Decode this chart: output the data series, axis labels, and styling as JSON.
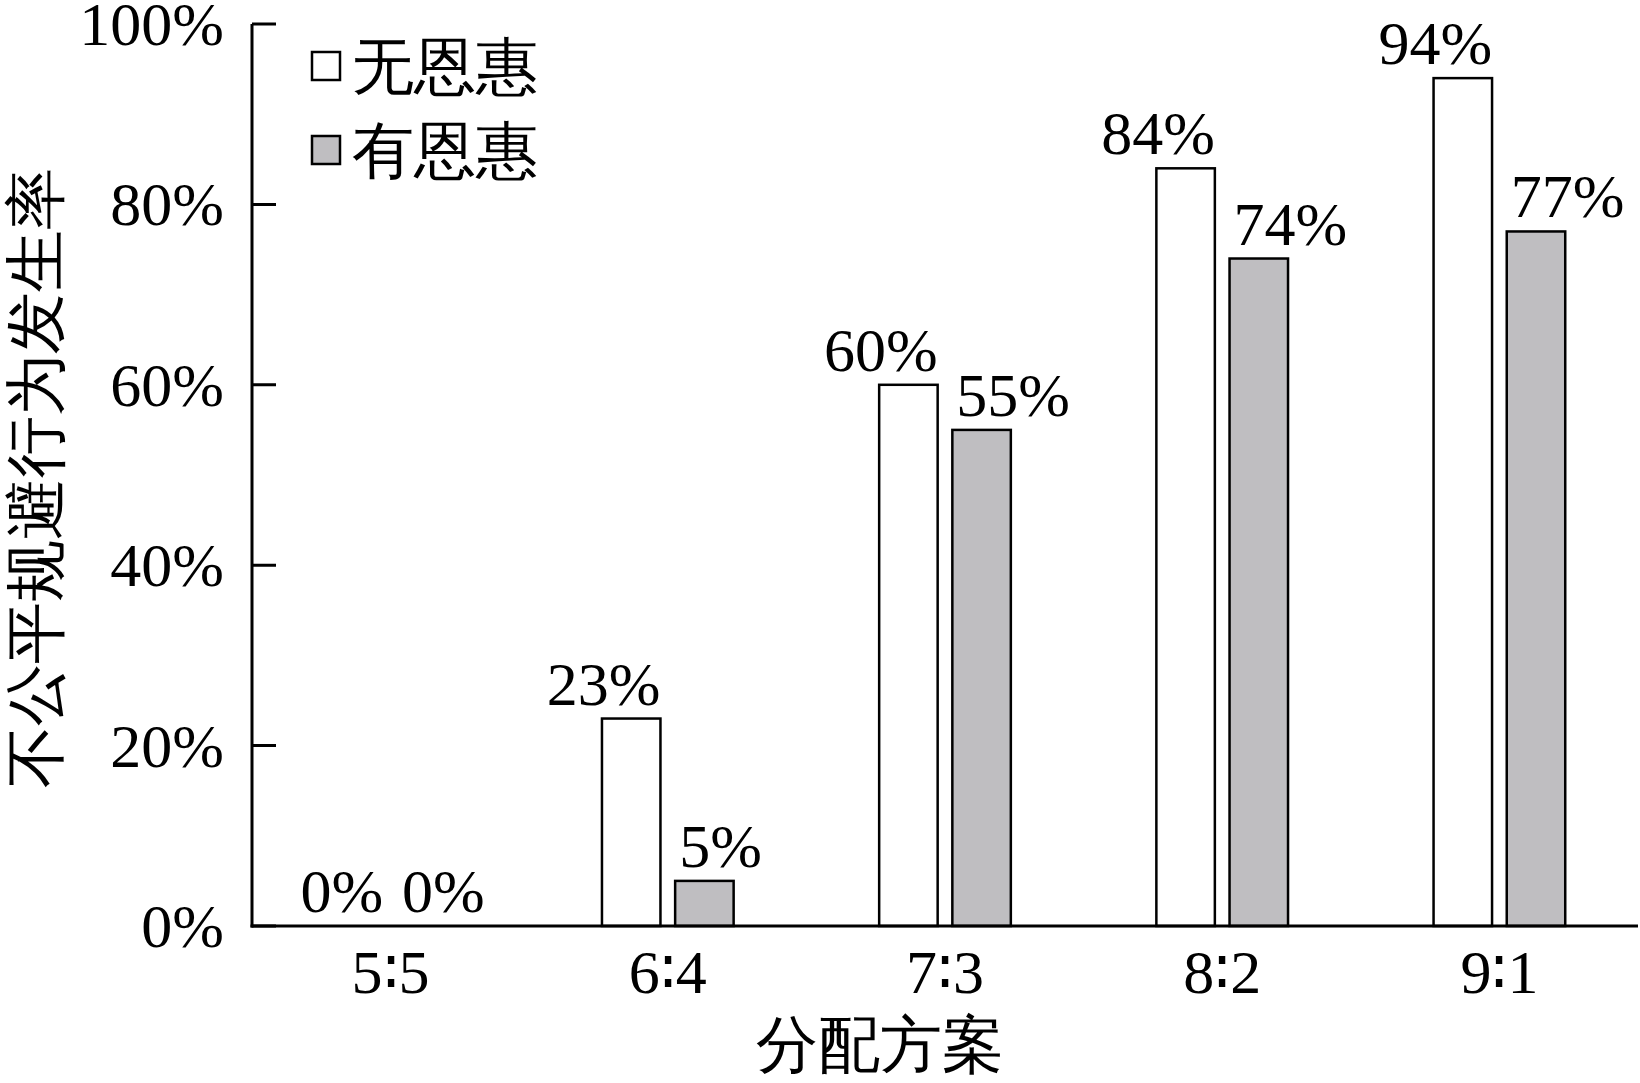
{
  "chart_data": {
    "type": "bar",
    "xlabel": "分配方案",
    "ylabel": "不公平规避行为发生率",
    "categories": [
      "5∶5",
      "6∶4",
      "7∶3",
      "8∶2",
      "9∶1"
    ],
    "series": [
      {
        "name": "无恩惠",
        "color": "#ffffff",
        "values": [
          0,
          23,
          60,
          84,
          94
        ],
        "value_labels": [
          "0%",
          "23%",
          "60%",
          "84%",
          "94%"
        ]
      },
      {
        "name": "有恩惠",
        "color": "#bfbec1",
        "values": [
          0,
          5,
          55,
          74,
          77
        ],
        "value_labels": [
          "0%",
          "5%",
          "55%",
          "74%",
          "77%"
        ]
      }
    ],
    "ylim": [
      0,
      100
    ],
    "yticks": [
      {
        "value": 0,
        "label": "0%"
      },
      {
        "value": 20,
        "label": "20%"
      },
      {
        "value": 40,
        "label": "40%"
      },
      {
        "value": 60,
        "label": "60%"
      },
      {
        "value": 80,
        "label": "80%"
      },
      {
        "value": 100,
        "label": "100%"
      }
    ],
    "legend": "top left"
  }
}
